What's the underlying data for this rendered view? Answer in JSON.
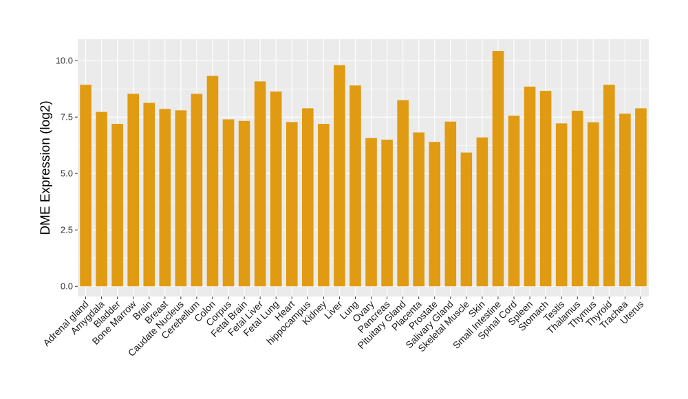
{
  "chart_data": {
    "type": "bar",
    "title": "",
    "xlabel": "",
    "ylabel": "DME Expression (log2)",
    "ylim": [
      -0.45,
      10.95
    ],
    "yticks": [
      0.0,
      2.5,
      5.0,
      7.5,
      10.0
    ],
    "ytick_labels": [
      "0.0",
      "2.5",
      "5.0",
      "7.5",
      "10.0"
    ],
    "grid": true,
    "legend": "none",
    "bar_color": "#E09B12",
    "panel_background": "#EBEBEB",
    "gridline_color": "#FFFFFF",
    "categories": [
      "Adrenal gland",
      "Amygdala",
      "Bladder",
      "Bone Marrow",
      "Brain",
      "Breast",
      "Caudate Nucleus",
      "Cerebellum",
      "Colon",
      "Corpus",
      "Fetal Brain",
      "Fetal Liver",
      "Fetal Lung",
      "Heart",
      "hippocampus",
      "Kidney",
      "Liver",
      "Lung",
      "Ovary",
      "Pancreas",
      "Pituitary Gland",
      "Placenta",
      "Prostate",
      "Salivary Gland",
      "Skeletal Muscle",
      "Skin",
      "Small Intestine",
      "Spinal Cord",
      "Spleen",
      "Stomach",
      "Testis",
      "Thalamus",
      "Thymus",
      "Thyroid",
      "Trachea",
      "Uterus"
    ],
    "values": [
      8.93,
      7.73,
      7.2,
      8.53,
      8.13,
      7.86,
      7.8,
      8.53,
      9.33,
      7.4,
      7.33,
      9.08,
      8.63,
      7.28,
      7.89,
      7.2,
      9.8,
      8.9,
      6.57,
      6.5,
      8.25,
      6.82,
      6.4,
      7.3,
      5.93,
      6.6,
      10.43,
      7.56,
      8.85,
      8.66,
      7.22,
      7.78,
      7.27,
      8.93,
      7.65,
      7.89
    ]
  }
}
